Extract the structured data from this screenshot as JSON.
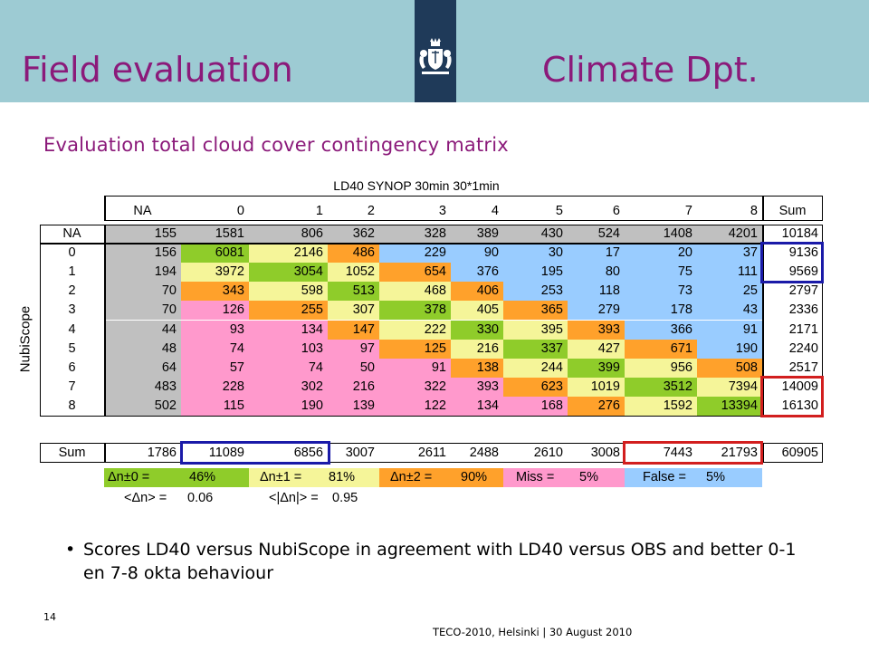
{
  "header": {
    "title_left": "Field evaluation",
    "title_right": "Climate Dpt.",
    "logo_icon": "crest-icon",
    "bg_color": "#9dcbd3",
    "logo_bar_color": "#1f3a59",
    "title_color": "#8b1a7a"
  },
  "subtitle": "Evaluation total cloud cover contingency matrix",
  "table": {
    "caption": "LD40 SYNOP 30min 30*1min",
    "y_label": "NubiScope",
    "columns": [
      "NA",
      "0",
      "1",
      "2",
      "3",
      "4",
      "5",
      "6",
      "7",
      "8",
      "Sum"
    ],
    "rows": [
      {
        "label": "NA",
        "values": [
          "155",
          "1581",
          "806",
          "362",
          "328",
          "389",
          "430",
          "524",
          "1408",
          "4201",
          "10184"
        ]
      },
      {
        "label": "0",
        "values": [
          "156",
          "6081",
          "2146",
          "486",
          "229",
          "90",
          "30",
          "17",
          "20",
          "37",
          "9136"
        ]
      },
      {
        "label": "1",
        "values": [
          "194",
          "3972",
          "3054",
          "1052",
          "654",
          "376",
          "195",
          "80",
          "75",
          "111",
          "9569"
        ]
      },
      {
        "label": "2",
        "values": [
          "70",
          "343",
          "598",
          "513",
          "468",
          "406",
          "253",
          "118",
          "73",
          "25",
          "2797"
        ]
      },
      {
        "label": "3",
        "values": [
          "70",
          "126",
          "255",
          "307",
          "378",
          "405",
          "365",
          "279",
          "178",
          "43",
          "2336"
        ]
      },
      {
        "label": "4",
        "values": [
          "44",
          "93",
          "134",
          "147",
          "222",
          "330",
          "395",
          "393",
          "366",
          "91",
          "2171"
        ]
      },
      {
        "label": "5",
        "values": [
          "48",
          "74",
          "103",
          "97",
          "125",
          "216",
          "337",
          "427",
          "671",
          "190",
          "2240"
        ]
      },
      {
        "label": "6",
        "values": [
          "64",
          "57",
          "74",
          "50",
          "91",
          "138",
          "244",
          "399",
          "956",
          "508",
          "2517"
        ]
      },
      {
        "label": "7",
        "values": [
          "483",
          "228",
          "302",
          "216",
          "322",
          "393",
          "623",
          "1019",
          "3512",
          "7394",
          "14009"
        ]
      },
      {
        "label": "8",
        "values": [
          "502",
          "115",
          "190",
          "139",
          "122",
          "134",
          "168",
          "276",
          "1592",
          "13394",
          "16130"
        ]
      },
      {
        "label": "Sum",
        "values": [
          "1786",
          "11089",
          "6856",
          "3007",
          "2611",
          "2488",
          "2610",
          "3008",
          "7443",
          "21793",
          "60905"
        ]
      }
    ],
    "colors": {
      "gray": "#c0c0c0",
      "green": "#8fcc2a",
      "yellow": "#f5f599",
      "orange": "#ffa12b",
      "blue": "#99ccff",
      "pink": "#ff99cc",
      "white": "#ffffff",
      "highlight_blue": "#1a1aa8",
      "highlight_red": "#d21e1e"
    }
  },
  "stats": {
    "d0_label": "Δn±0 =",
    "d0_value": "46%",
    "d1_label": "Δn±1 =",
    "d1_value": "81%",
    "d2_label": "Δn±2 =",
    "d2_value": "90%",
    "miss_label": "Miss =",
    "miss_value": "5%",
    "false_label": "False =",
    "false_value": "5%",
    "mean_label": "<Δn> =",
    "mean_value": "0.06",
    "abs_label": "<|Δn|> =",
    "abs_value": "0.95"
  },
  "bullet": "Scores LD40 versus NubiScope in agreement with LD40 versus OBS and better 0-1 en 7-8 okta behaviour",
  "footer": {
    "page_number": "14",
    "text": "TECO-2010, Helsinki | 30 August 2010"
  }
}
